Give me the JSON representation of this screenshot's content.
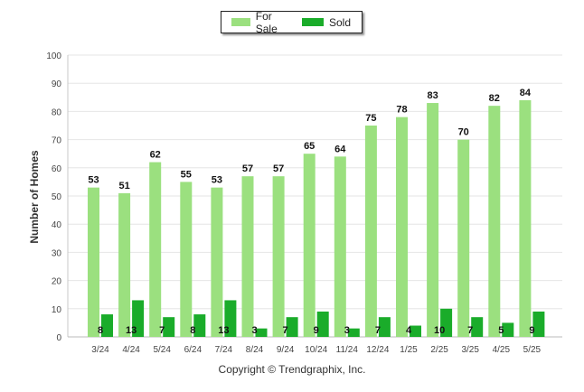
{
  "chart_data": {
    "type": "bar",
    "categories": [
      "3/24",
      "4/24",
      "5/24",
      "6/24",
      "7/24",
      "8/24",
      "9/24",
      "10/24",
      "11/24",
      "12/24",
      "1/25",
      "2/25",
      "3/25",
      "4/25",
      "5/25"
    ],
    "series": [
      {
        "name": "For Sale",
        "values": [
          53,
          51,
          62,
          55,
          53,
          57,
          57,
          65,
          64,
          75,
          78,
          83,
          70,
          82,
          84
        ],
        "color": "#9be07f"
      },
      {
        "name": "Sold",
        "values": [
          8,
          13,
          7,
          8,
          13,
          3,
          7,
          9,
          3,
          7,
          4,
          10,
          7,
          5,
          9
        ],
        "color": "#1aac2a"
      }
    ],
    "ylabel": "Number of Homes",
    "ylim": [
      0,
      100
    ],
    "yticks": [
      0,
      10,
      20,
      30,
      40,
      50,
      60,
      70,
      80,
      90,
      100
    ],
    "grid": true,
    "legend_position": "top-center"
  },
  "footer": {
    "copyright": "Copyright © Trendgraphix, Inc."
  }
}
